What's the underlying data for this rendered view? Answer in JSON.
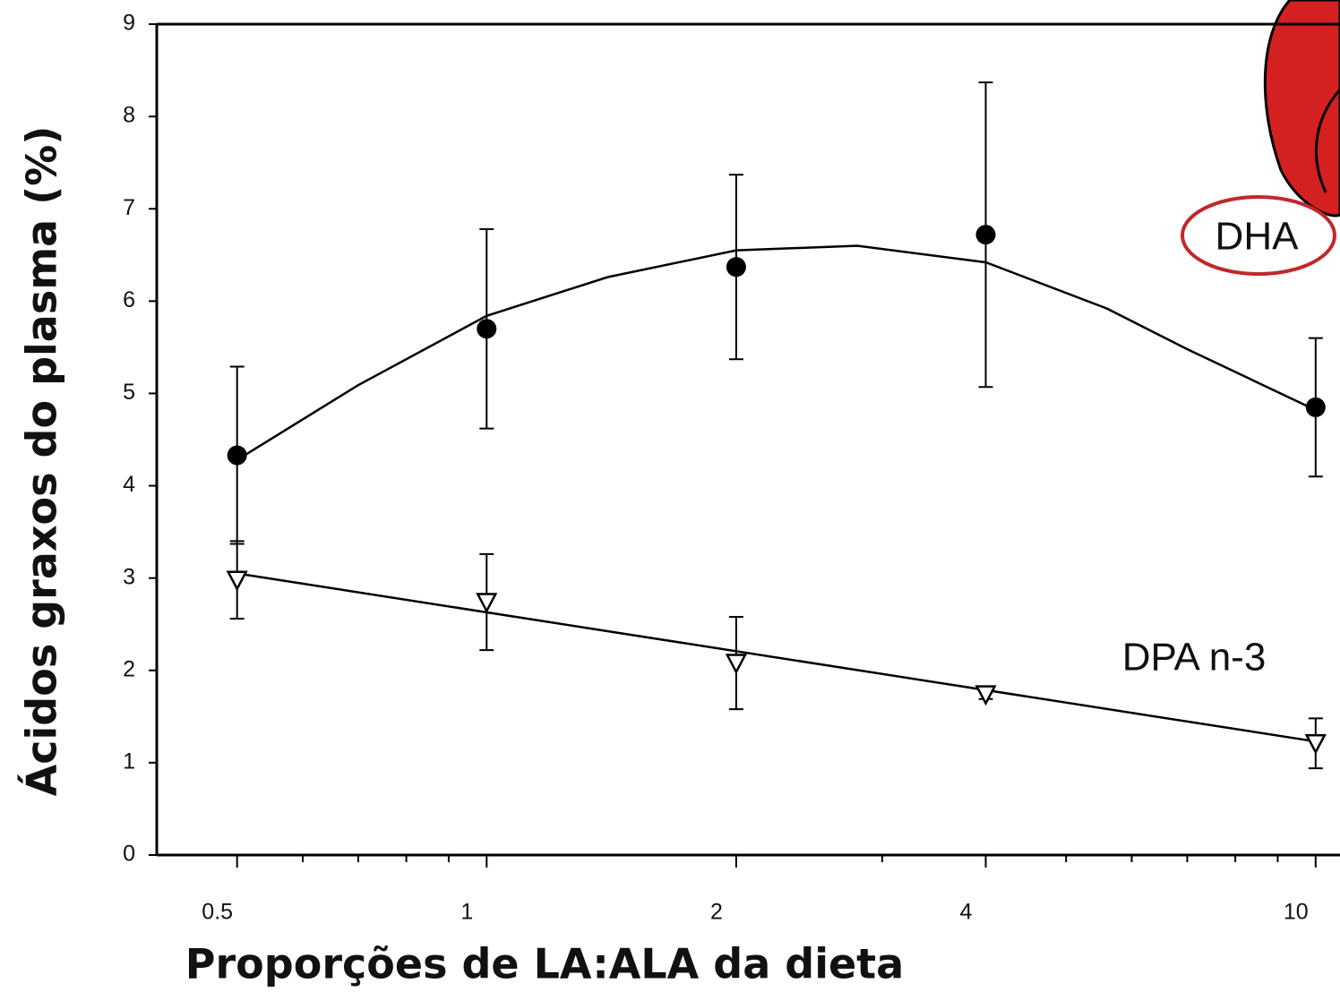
{
  "chart_data": {
    "type": "scatter",
    "xlabel": "Proporções de LA:ALA da dieta",
    "ylabel": "Ácidos graxos  do  plasma  (%)",
    "xlog": true,
    "xlim": [
      0.4,
      10.7
    ],
    "xticks": [
      0.5,
      1,
      2,
      4,
      10
    ],
    "xminor": [
      0.6,
      0.7,
      0.8,
      0.9,
      3,
      5,
      6,
      7,
      8,
      9
    ],
    "ylim": [
      0,
      9
    ],
    "yticks": [
      0,
      1,
      2,
      3,
      4,
      5,
      6,
      7,
      8,
      9
    ],
    "series": [
      {
        "name": "DHA",
        "color": "#000000",
        "marker": "filled-circle",
        "x": [
          0.5,
          1,
          2,
          4,
          10
        ],
        "values": [
          4.33,
          5.7,
          6.37,
          6.72,
          4.85
        ],
        "errors": [
          0.96,
          1.08,
          1.0,
          1.65,
          0.75
        ],
        "fit_x": [
          0.5,
          0.7,
          1,
          1.4,
          2,
          2.8,
          4,
          5.6,
          7,
          10
        ],
        "fit_values": [
          4.28,
          5.09,
          5.84,
          6.26,
          6.55,
          6.6,
          6.42,
          5.92,
          5.48,
          4.82
        ]
      },
      {
        "name": "DPA n-3",
        "color": "#000000",
        "marker": "open-triangle-down",
        "x": [
          0.5,
          1,
          2,
          4,
          10
        ],
        "values": [
          2.98,
          2.74,
          2.08,
          1.74,
          1.21
        ],
        "errors": [
          0.42,
          0.52,
          0.5,
          0.05,
          0.27
        ],
        "fit_x": [
          0.5,
          10
        ],
        "fit_values": [
          3.05,
          1.23
        ]
      }
    ]
  }
}
